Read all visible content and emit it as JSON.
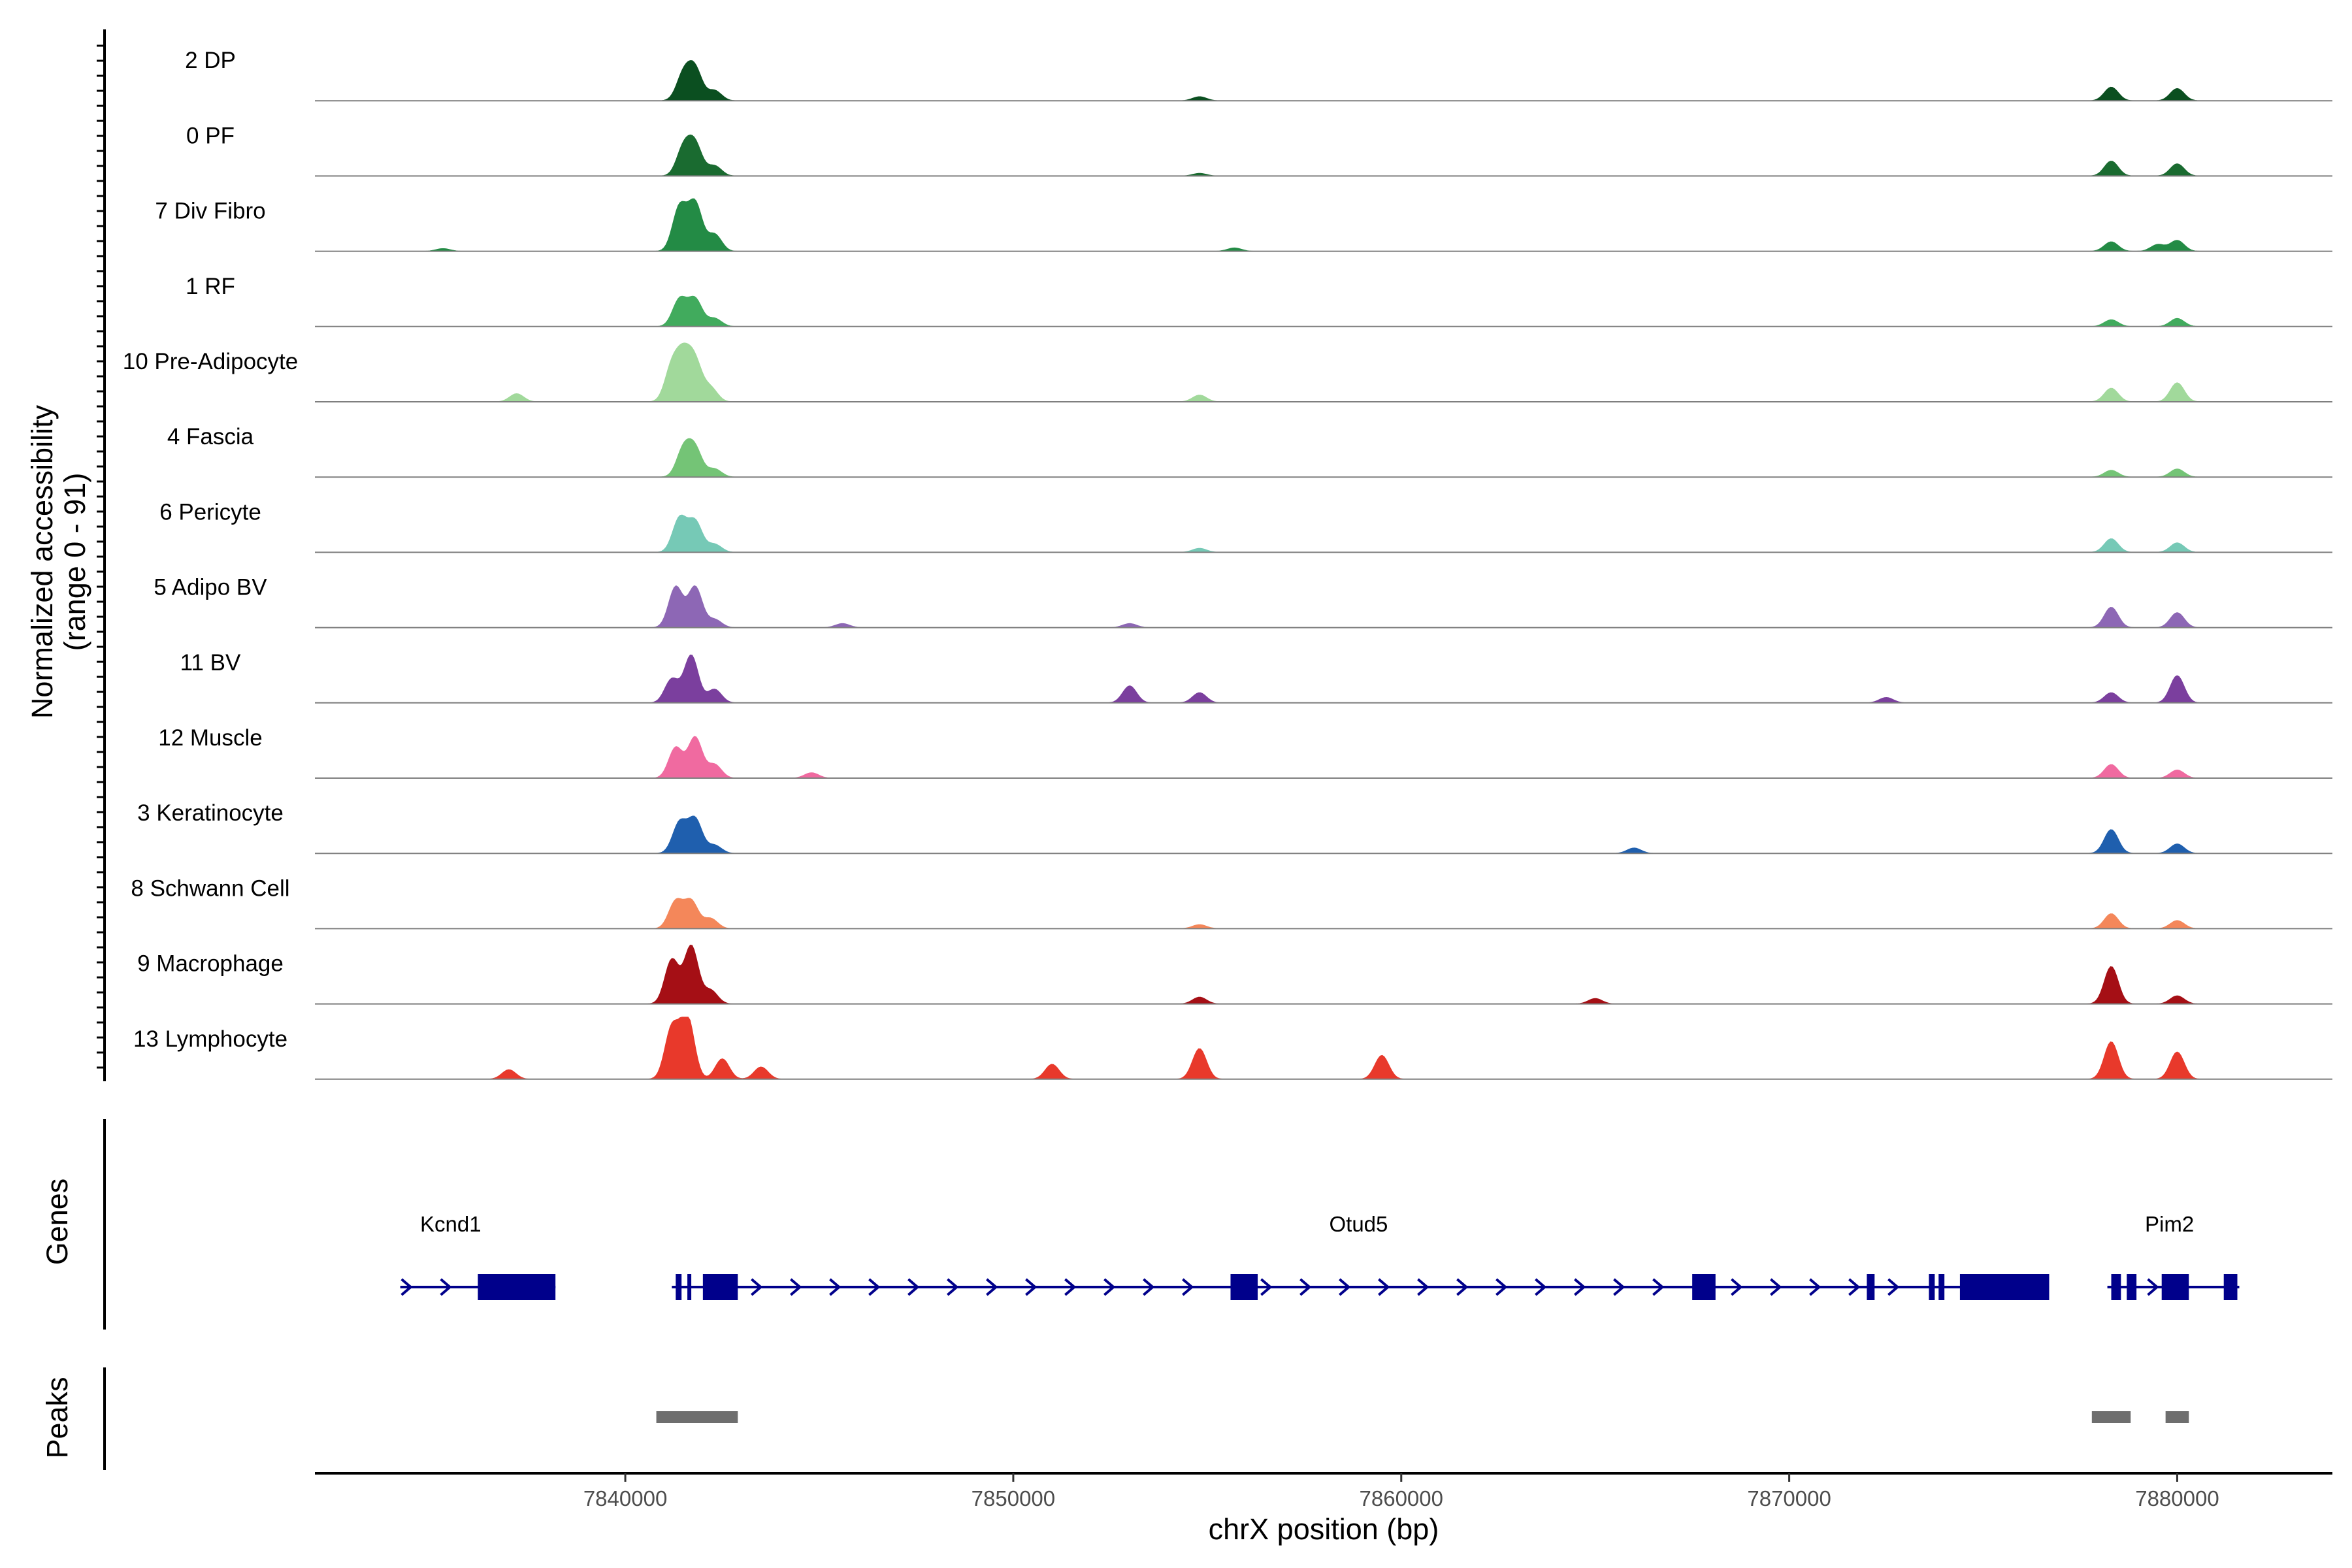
{
  "chart_data": {
    "type": "area",
    "title": "",
    "ylabel_lines": [
      "Normalized accessibility",
      "(range 0 - 91)"
    ],
    "xlabel": "chrX position (bp)",
    "xlim": [
      7832000,
      7884000
    ],
    "ylim": [
      0,
      91
    ],
    "xticks": [
      7840000,
      7850000,
      7860000,
      7870000,
      7880000
    ],
    "xtick_labels": [
      "7840000",
      "7850000",
      "7860000",
      "7870000",
      "7880000"
    ],
    "tracks": [
      {
        "name": "2 DP",
        "color": "#0b4f20",
        "peaks": [
          [
            7841500,
            38
          ],
          [
            7841800,
            45
          ],
          [
            7842300,
            15
          ],
          [
            7854800,
            6
          ],
          [
            7878300,
            20
          ],
          [
            7880000,
            18
          ]
        ]
      },
      {
        "name": "0 PF",
        "color": "#1a6b30",
        "peaks": [
          [
            7841500,
            40
          ],
          [
            7841800,
            45
          ],
          [
            7842300,
            15
          ],
          [
            7854800,
            4
          ],
          [
            7878300,
            22
          ],
          [
            7880000,
            18
          ]
        ]
      },
      {
        "name": "7 Div Fibro",
        "color": "#238b45",
        "peaks": [
          [
            7841400,
            65
          ],
          [
            7841800,
            70
          ],
          [
            7842300,
            25
          ],
          [
            7835300,
            4
          ],
          [
            7855700,
            5
          ],
          [
            7878300,
            14
          ],
          [
            7879500,
            10
          ],
          [
            7880000,
            16
          ]
        ]
      },
      {
        "name": "1 RF",
        "color": "#41ab5d",
        "peaks": [
          [
            7841400,
            40
          ],
          [
            7841800,
            40
          ],
          [
            7842300,
            12
          ],
          [
            7878300,
            10
          ],
          [
            7880000,
            12
          ]
        ]
      },
      {
        "name": "10 Pre-Adipocyte",
        "color": "#a1d99b",
        "peaks": [
          [
            7841200,
            50
          ],
          [
            7841500,
            60
          ],
          [
            7841800,
            55
          ],
          [
            7842200,
            20
          ],
          [
            7837200,
            12
          ],
          [
            7854800,
            10
          ],
          [
            7878300,
            20
          ],
          [
            7880000,
            28
          ]
        ]
      },
      {
        "name": "4 Fascia",
        "color": "#74c476",
        "peaks": [
          [
            7841500,
            40
          ],
          [
            7841800,
            40
          ],
          [
            7842300,
            12
          ],
          [
            7878300,
            10
          ],
          [
            7880000,
            12
          ]
        ]
      },
      {
        "name": "6 Pericyte",
        "color": "#76c9b6",
        "peaks": [
          [
            7841400,
            50
          ],
          [
            7841800,
            45
          ],
          [
            7842300,
            12
          ],
          [
            7854800,
            6
          ],
          [
            7878300,
            20
          ],
          [
            7880000,
            14
          ]
        ]
      },
      {
        "name": "5 Adipo BV",
        "color": "#8d67b5",
        "peaks": [
          [
            7841300,
            60
          ],
          [
            7841800,
            60
          ],
          [
            7842300,
            12
          ],
          [
            7845600,
            6
          ],
          [
            7853000,
            6
          ],
          [
            7878300,
            30
          ],
          [
            7880000,
            22
          ]
        ]
      },
      {
        "name": "11 BV",
        "color": "#7b3f9e",
        "peaks": [
          [
            7841200,
            35
          ],
          [
            7841700,
            70
          ],
          [
            7842300,
            20
          ],
          [
            7853000,
            25
          ],
          [
            7854800,
            15
          ],
          [
            7872500,
            8
          ],
          [
            7878300,
            15
          ],
          [
            7880000,
            40
          ]
        ]
      },
      {
        "name": "12 Muscle",
        "color": "#f06aa0",
        "peaks": [
          [
            7841300,
            45
          ],
          [
            7841800,
            60
          ],
          [
            7842300,
            20
          ],
          [
            7844800,
            8
          ],
          [
            7878300,
            20
          ],
          [
            7880000,
            12
          ]
        ]
      },
      {
        "name": "3 Keratinocyte",
        "color": "#1f5fae",
        "peaks": [
          [
            7841400,
            45
          ],
          [
            7841800,
            50
          ],
          [
            7842300,
            12
          ],
          [
            7866000,
            8
          ],
          [
            7878300,
            35
          ],
          [
            7880000,
            14
          ]
        ]
      },
      {
        "name": "8 Schwann Cell",
        "color": "#f4875a",
        "peaks": [
          [
            7841300,
            40
          ],
          [
            7841700,
            40
          ],
          [
            7842200,
            15
          ],
          [
            7854800,
            6
          ],
          [
            7878300,
            22
          ],
          [
            7880000,
            12
          ]
        ]
      },
      {
        "name": "9 Macrophage",
        "color": "#a50f15",
        "peaks": [
          [
            7841200,
            65
          ],
          [
            7841700,
            85
          ],
          [
            7842200,
            20
          ],
          [
            7854800,
            10
          ],
          [
            7865000,
            8
          ],
          [
            7878300,
            55
          ],
          [
            7880000,
            12
          ]
        ]
      },
      {
        "name": "13 Lymphocyte",
        "color": "#e8392b",
        "peaks": [
          [
            7837000,
            14
          ],
          [
            7841200,
            75
          ],
          [
            7841600,
            91
          ],
          [
            7842500,
            30
          ],
          [
            7843500,
            18
          ],
          [
            7851000,
            22
          ],
          [
            7854800,
            45
          ],
          [
            7859500,
            35
          ],
          [
            7878300,
            55
          ],
          [
            7880000,
            40
          ]
        ]
      }
    ],
    "genes_label": "Genes",
    "genes": [
      {
        "name": "Kcnd1",
        "label_x": 7835500,
        "start": 7834200,
        "end": 7838200,
        "exons": [
          [
            7836200,
            7838200
          ]
        ]
      },
      {
        "name": "Otud5",
        "label_x": 7858900,
        "start": 7841200,
        "end": 7876700,
        "exons": [
          [
            7841300,
            7841450
          ],
          [
            7841600,
            7841700
          ],
          [
            7842000,
            7842900
          ],
          [
            7855600,
            7856300
          ],
          [
            7867500,
            7868100
          ],
          [
            7872000,
            7872200
          ],
          [
            7873600,
            7873750
          ],
          [
            7873850,
            7874000
          ],
          [
            7874400,
            7876700
          ]
        ]
      },
      {
        "name": "Pim2",
        "label_x": 7879800,
        "start": 7878200,
        "end": 7881600,
        "exons": [
          [
            7878300,
            7878550
          ],
          [
            7878700,
            7878950
          ],
          [
            7879600,
            7880300
          ],
          [
            7881200,
            7881550
          ]
        ]
      }
    ],
    "peaks_label": "Peaks",
    "peak_regions": [
      [
        7840800,
        7842900
      ],
      [
        7877800,
        7878800
      ],
      [
        7879700,
        7880300
      ]
    ],
    "colors": {
      "gene": "#00008b",
      "peak_region": "#6e6e6e",
      "baseline": "#7f7f7f"
    }
  }
}
